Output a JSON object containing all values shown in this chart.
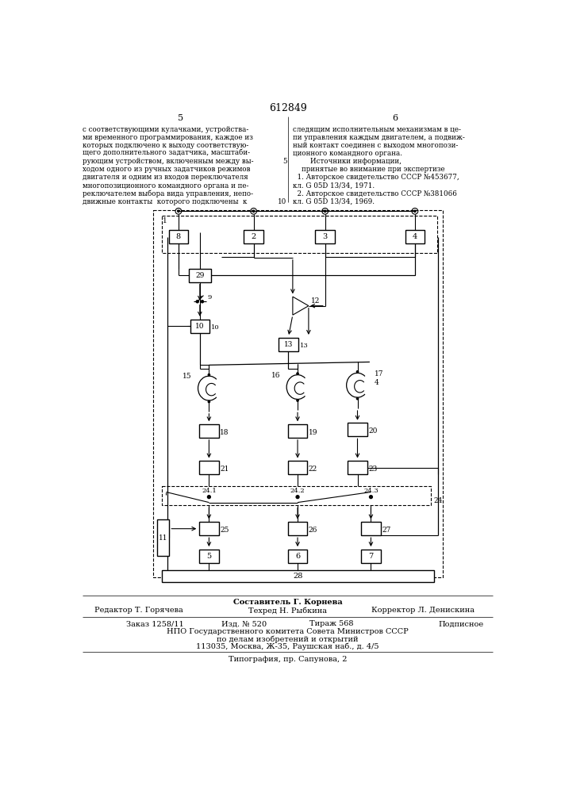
{
  "bg_color": "#ffffff",
  "page_number": "612849",
  "col_left": "5",
  "col_right": "6",
  "text_left": [
    "с соответствующими кулачками, устройства-",
    "ми временного программирования, каждое из",
    "которых подключено к выходу соответствую-",
    "щего дополнительного задатчика, масштаби-",
    "рующим устройством, включенным между вы-",
    "ходом одного из ручных задатчиков режимов",
    "двигателя и одним из входов переключателя",
    "многопозиционного командного органа и пе-",
    "реключателем выбора вида управления, непо-",
    "движные контакты  которого подключены  к"
  ],
  "text_right": [
    "следящим исполнительным механизмам в це-",
    "пи управления каждым двигателем, а подвиж-",
    "ный контакт соединен с выходом многопози-",
    "ционного командного органа.",
    "        Источники информации,",
    "    принятые во внимание при экспертизе",
    "  1. Авторское свидетельство СССР №453677,",
    "кл. G 05D 13/34, 1971.",
    "  2. Авторское свидетельство СССР №381066",
    "кл. G 05D 13/34, 1969."
  ],
  "footer_compiler": "Составитель Г. Корнева",
  "footer_editor": "Редактор Т. Горячева",
  "footer_tech": "Техред Н. Рыбкина",
  "footer_corrector": "Корректор Л. Денискина",
  "footer_order": "Заказ 1258/11",
  "footer_edition": "Изд. № 520",
  "footer_print": "Тираж 568",
  "footer_subscription": "Подписное",
  "footer_org": "НПО Государственного комитета Совета Министров СССР",
  "footer_org2": "по делам изобретений и открытий",
  "footer_address": "113035, Москва, Ж-35, Раушская наб., д. 4/5",
  "footer_print_house": "Типография, пр. Сапунова, 2"
}
